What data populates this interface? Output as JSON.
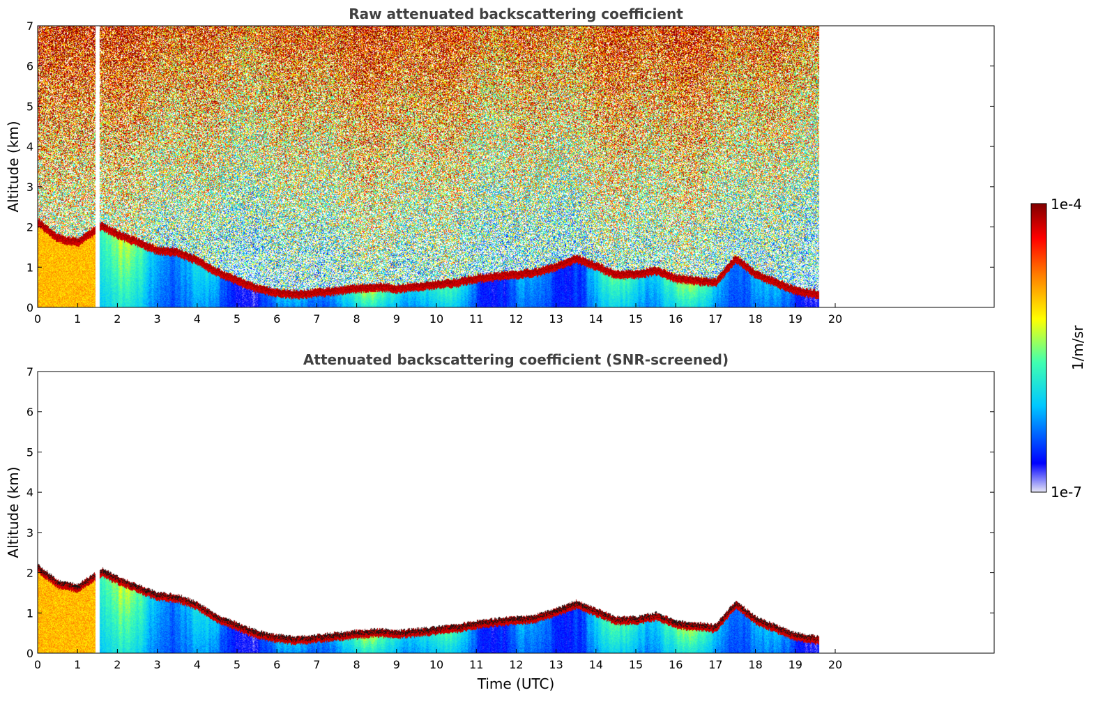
{
  "chart_data": [
    {
      "type": "heatmap",
      "title": "Raw attenuated backscattering coefficient",
      "xlabel": "",
      "ylabel": "Altitude (km)",
      "xlim": [
        0,
        24
      ],
      "ylim": [
        0,
        7
      ],
      "x_ticks": [
        "0",
        "1",
        "2",
        "3",
        "4",
        "5",
        "6",
        "7",
        "8",
        "9",
        "10",
        "11",
        "12",
        "13",
        "14",
        "15",
        "16",
        "17",
        "18",
        "19",
        "20"
      ],
      "y_ticks": [
        "0",
        "1",
        "2",
        "3",
        "4",
        "5",
        "6",
        "7"
      ],
      "data_extent_hours": [
        0,
        19.6
      ],
      "gap_hours": [
        1.45,
        1.55
      ],
      "noise_top_km": 7,
      "screened": false,
      "boundary_layer_top": {
        "time": [
          0,
          0.5,
          1.0,
          1.45,
          1.6,
          2.0,
          2.5,
          3.0,
          3.5,
          4.0,
          4.5,
          5.0,
          5.5,
          6.0,
          6.5,
          7.0,
          7.5,
          8.0,
          8.5,
          9.0,
          9.5,
          10.0,
          10.5,
          11.0,
          11.5,
          12.0,
          12.5,
          13.0,
          13.5,
          14.0,
          14.5,
          15.0,
          15.5,
          16.0,
          16.5,
          17.0,
          17.5,
          18.0,
          18.5,
          19.0,
          19.6
        ],
        "altitude_km": [
          2.1,
          1.7,
          1.6,
          1.9,
          2.0,
          1.8,
          1.6,
          1.4,
          1.35,
          1.15,
          0.85,
          0.65,
          0.45,
          0.35,
          0.3,
          0.35,
          0.4,
          0.45,
          0.5,
          0.45,
          0.5,
          0.55,
          0.6,
          0.7,
          0.75,
          0.8,
          0.85,
          1.0,
          1.2,
          1.0,
          0.8,
          0.8,
          0.9,
          0.7,
          0.65,
          0.6,
          1.2,
          0.8,
          0.6,
          0.4,
          0.3
        ]
      }
    },
    {
      "type": "heatmap",
      "title": "Attenuated backscattering coefficient (SNR-screened)",
      "xlabel": "Time (UTC)",
      "ylabel": "Altitude (km)",
      "xlim": [
        0,
        24
      ],
      "ylim": [
        0,
        7
      ],
      "x_ticks": [
        "0",
        "1",
        "2",
        "3",
        "4",
        "5",
        "6",
        "7",
        "8",
        "9",
        "10",
        "11",
        "12",
        "13",
        "14",
        "15",
        "16",
        "17",
        "18",
        "19",
        "20"
      ],
      "y_ticks": [
        "0",
        "1",
        "2",
        "3",
        "4",
        "5",
        "6",
        "7"
      ],
      "data_extent_hours": [
        0,
        19.6
      ],
      "gap_hours": [
        1.45,
        1.55
      ],
      "screened": true
    }
  ],
  "colorbar": {
    "label": "1/m/sr",
    "max_label": "1e-4",
    "min_label": "1e-7",
    "scale": "log",
    "colormap": "jet",
    "colors": [
      "#e6e6f5",
      "#0000ff",
      "#00c8ff",
      "#40ffb0",
      "#ffff00",
      "#ff8000",
      "#ff0000",
      "#800000"
    ]
  },
  "palette": {
    "title_color": "#404040",
    "axis_color": "#000000",
    "background": "#ffffff"
  }
}
